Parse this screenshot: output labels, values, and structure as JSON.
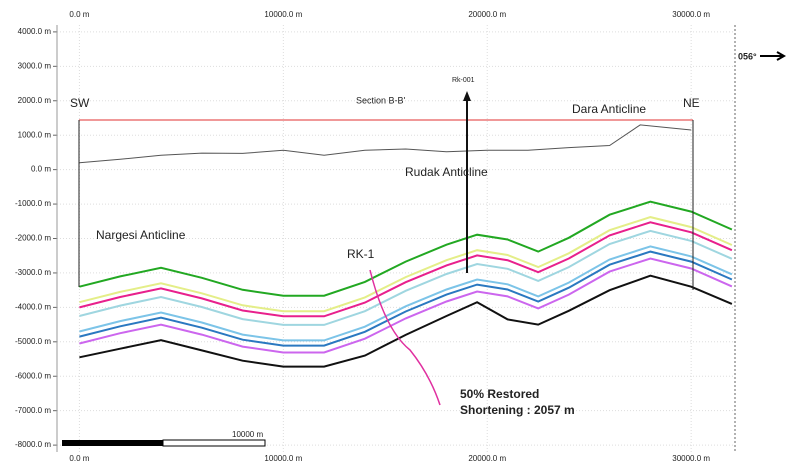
{
  "chart_data": {
    "type": "line",
    "x": [
      0,
      2000,
      4000,
      6000,
      8000,
      10000,
      12000,
      14000,
      16000,
      18000,
      19500,
      21000,
      22500,
      24000,
      26000,
      28000,
      30000,
      32000
    ],
    "series": [
      {
        "color": "#22a822",
        "values": [
          -3400,
          -3100,
          -2850,
          -3140,
          -3490,
          -3660,
          -3660,
          -3260,
          -2670,
          -2180,
          -1890,
          -2030,
          -2380,
          -1980,
          -1310,
          -930,
          -1220,
          -1740
        ]
      },
      {
        "color": "#e4ee88",
        "values": [
          -3850,
          -3550,
          -3300,
          -3590,
          -3940,
          -4110,
          -4110,
          -3710,
          -3120,
          -2630,
          -2340,
          -2480,
          -2830,
          -2430,
          -1760,
          -1380,
          -1670,
          -2190
        ]
      },
      {
        "color": "#e8208c",
        "values": [
          -4000,
          -3700,
          -3450,
          -3740,
          -4090,
          -4260,
          -4260,
          -3860,
          -3270,
          -2780,
          -2490,
          -2630,
          -2980,
          -2580,
          -1910,
          -1530,
          -1820,
          -2340
        ]
      },
      {
        "color": "#9fd6e0",
        "values": [
          -4250,
          -3950,
          -3700,
          -3990,
          -4340,
          -4510,
          -4510,
          -4110,
          -3520,
          -3030,
          -2740,
          -2880,
          -3230,
          -2830,
          -2160,
          -1780,
          -2070,
          -2590
        ]
      },
      {
        "color": "#7cc4e8",
        "values": [
          -4700,
          -4400,
          -4150,
          -4440,
          -4790,
          -4960,
          -4960,
          -4560,
          -3970,
          -3480,
          -3190,
          -3330,
          -3680,
          -3280,
          -2610,
          -2230,
          -2520,
          -3040
        ]
      },
      {
        "color": "#2a78c0",
        "values": [
          -4850,
          -4550,
          -4300,
          -4590,
          -4940,
          -5110,
          -5110,
          -4710,
          -4120,
          -3630,
          -3340,
          -3480,
          -3830,
          -3430,
          -2760,
          -2380,
          -2670,
          -3190
        ]
      },
      {
        "color": "#cc66ee",
        "values": [
          -5050,
          -4750,
          -4500,
          -4790,
          -5140,
          -5310,
          -5310,
          -4910,
          -4320,
          -3830,
          -3540,
          -3680,
          -4030,
          -3630,
          -2960,
          -2580,
          -2870,
          -3390
        ]
      },
      {
        "color": "#111111",
        "values": [
          -5450,
          -5200,
          -4950,
          -5250,
          -5550,
          -5720,
          -5720,
          -5400,
          -4800,
          -4250,
          -3850,
          -4350,
          -4500,
          -4100,
          -3500,
          -3080,
          -3400,
          -3900
        ]
      },
      {
        "color": "#555555",
        "x": [
          0,
          2000,
          4000,
          6000,
          8000,
          10000,
          12000,
          14000,
          16000,
          18000,
          20000,
          22000,
          24000,
          26000,
          27500,
          30000
        ],
        "values": [
          200,
          300,
          420,
          480,
          470,
          560,
          420,
          560,
          600,
          520,
          560,
          560,
          640,
          700,
          1300,
          1150
        ]
      }
    ],
    "xlim": [
      -1100,
      32150
    ],
    "ylim": [
      -8200,
      4200
    ],
    "xticks": [
      {
        "value": 0,
        "label": "0.0 m"
      },
      {
        "value": 10000,
        "label": "10000.0 m"
      },
      {
        "value": 20000,
        "label": "20000.0 m"
      },
      {
        "value": 30000,
        "label": "30000.0 m"
      }
    ],
    "yticks": [
      {
        "value": 4000,
        "label": "4000.0 m"
      },
      {
        "value": 3000,
        "label": "3000.0 m"
      },
      {
        "value": 2000,
        "label": "2000.0 m"
      },
      {
        "value": 1000,
        "label": "1000.0 m"
      },
      {
        "value": 0,
        "label": "0.0 m"
      },
      {
        "value": -1000,
        "label": "-1000.0 m"
      },
      {
        "value": -2000,
        "label": "-2000.0 m"
      },
      {
        "value": -3000,
        "label": "-3000.0 m"
      },
      {
        "value": -4000,
        "label": "-4000.0 m"
      },
      {
        "value": -5000,
        "label": "-5000.0 m"
      },
      {
        "value": -6000,
        "label": "-6000.0 m"
      },
      {
        "value": -7000,
        "label": "-7000.0 m"
      },
      {
        "value": -8000,
        "label": "-8000.0 m"
      }
    ],
    "grid": true,
    "annotations": [
      "SW",
      "NE",
      "Section B-B'",
      "Rk-001",
      "Dara Anticline",
      "Rudak Anticline",
      "Nargesi Anticline",
      "RK-1",
      "50% Restored",
      "Shortening : 2057 m",
      "056°",
      "10000 m"
    ]
  }
}
